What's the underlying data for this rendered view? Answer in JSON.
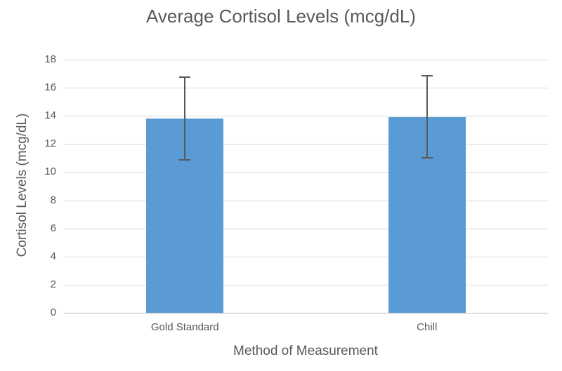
{
  "chart_data": {
    "type": "bar",
    "title": "Average Cortisol Levels (mcg/dL)",
    "xlabel": "Method of Measurement",
    "ylabel": "Cortisol Levels (mcg/dL)",
    "categories": [
      "Gold Standard",
      "Chill"
    ],
    "values": [
      13.8,
      13.9
    ],
    "error_bars": {
      "upper": [
        16.75,
        16.85
      ],
      "lower": [
        10.85,
        11.0
      ]
    },
    "ylim": [
      0,
      18
    ],
    "ytick_step": 2,
    "ytick_labels": [
      "0",
      "2",
      "4",
      "6",
      "8",
      "10",
      "12",
      "14",
      "16",
      "18"
    ],
    "grid": true,
    "legend": "none",
    "colors": {
      "bar": "#5B9BD5",
      "error_bar": "#595959",
      "gridline": "#D9D9D9",
      "axis_line": "#BFBFBF",
      "text": "#595959"
    }
  }
}
